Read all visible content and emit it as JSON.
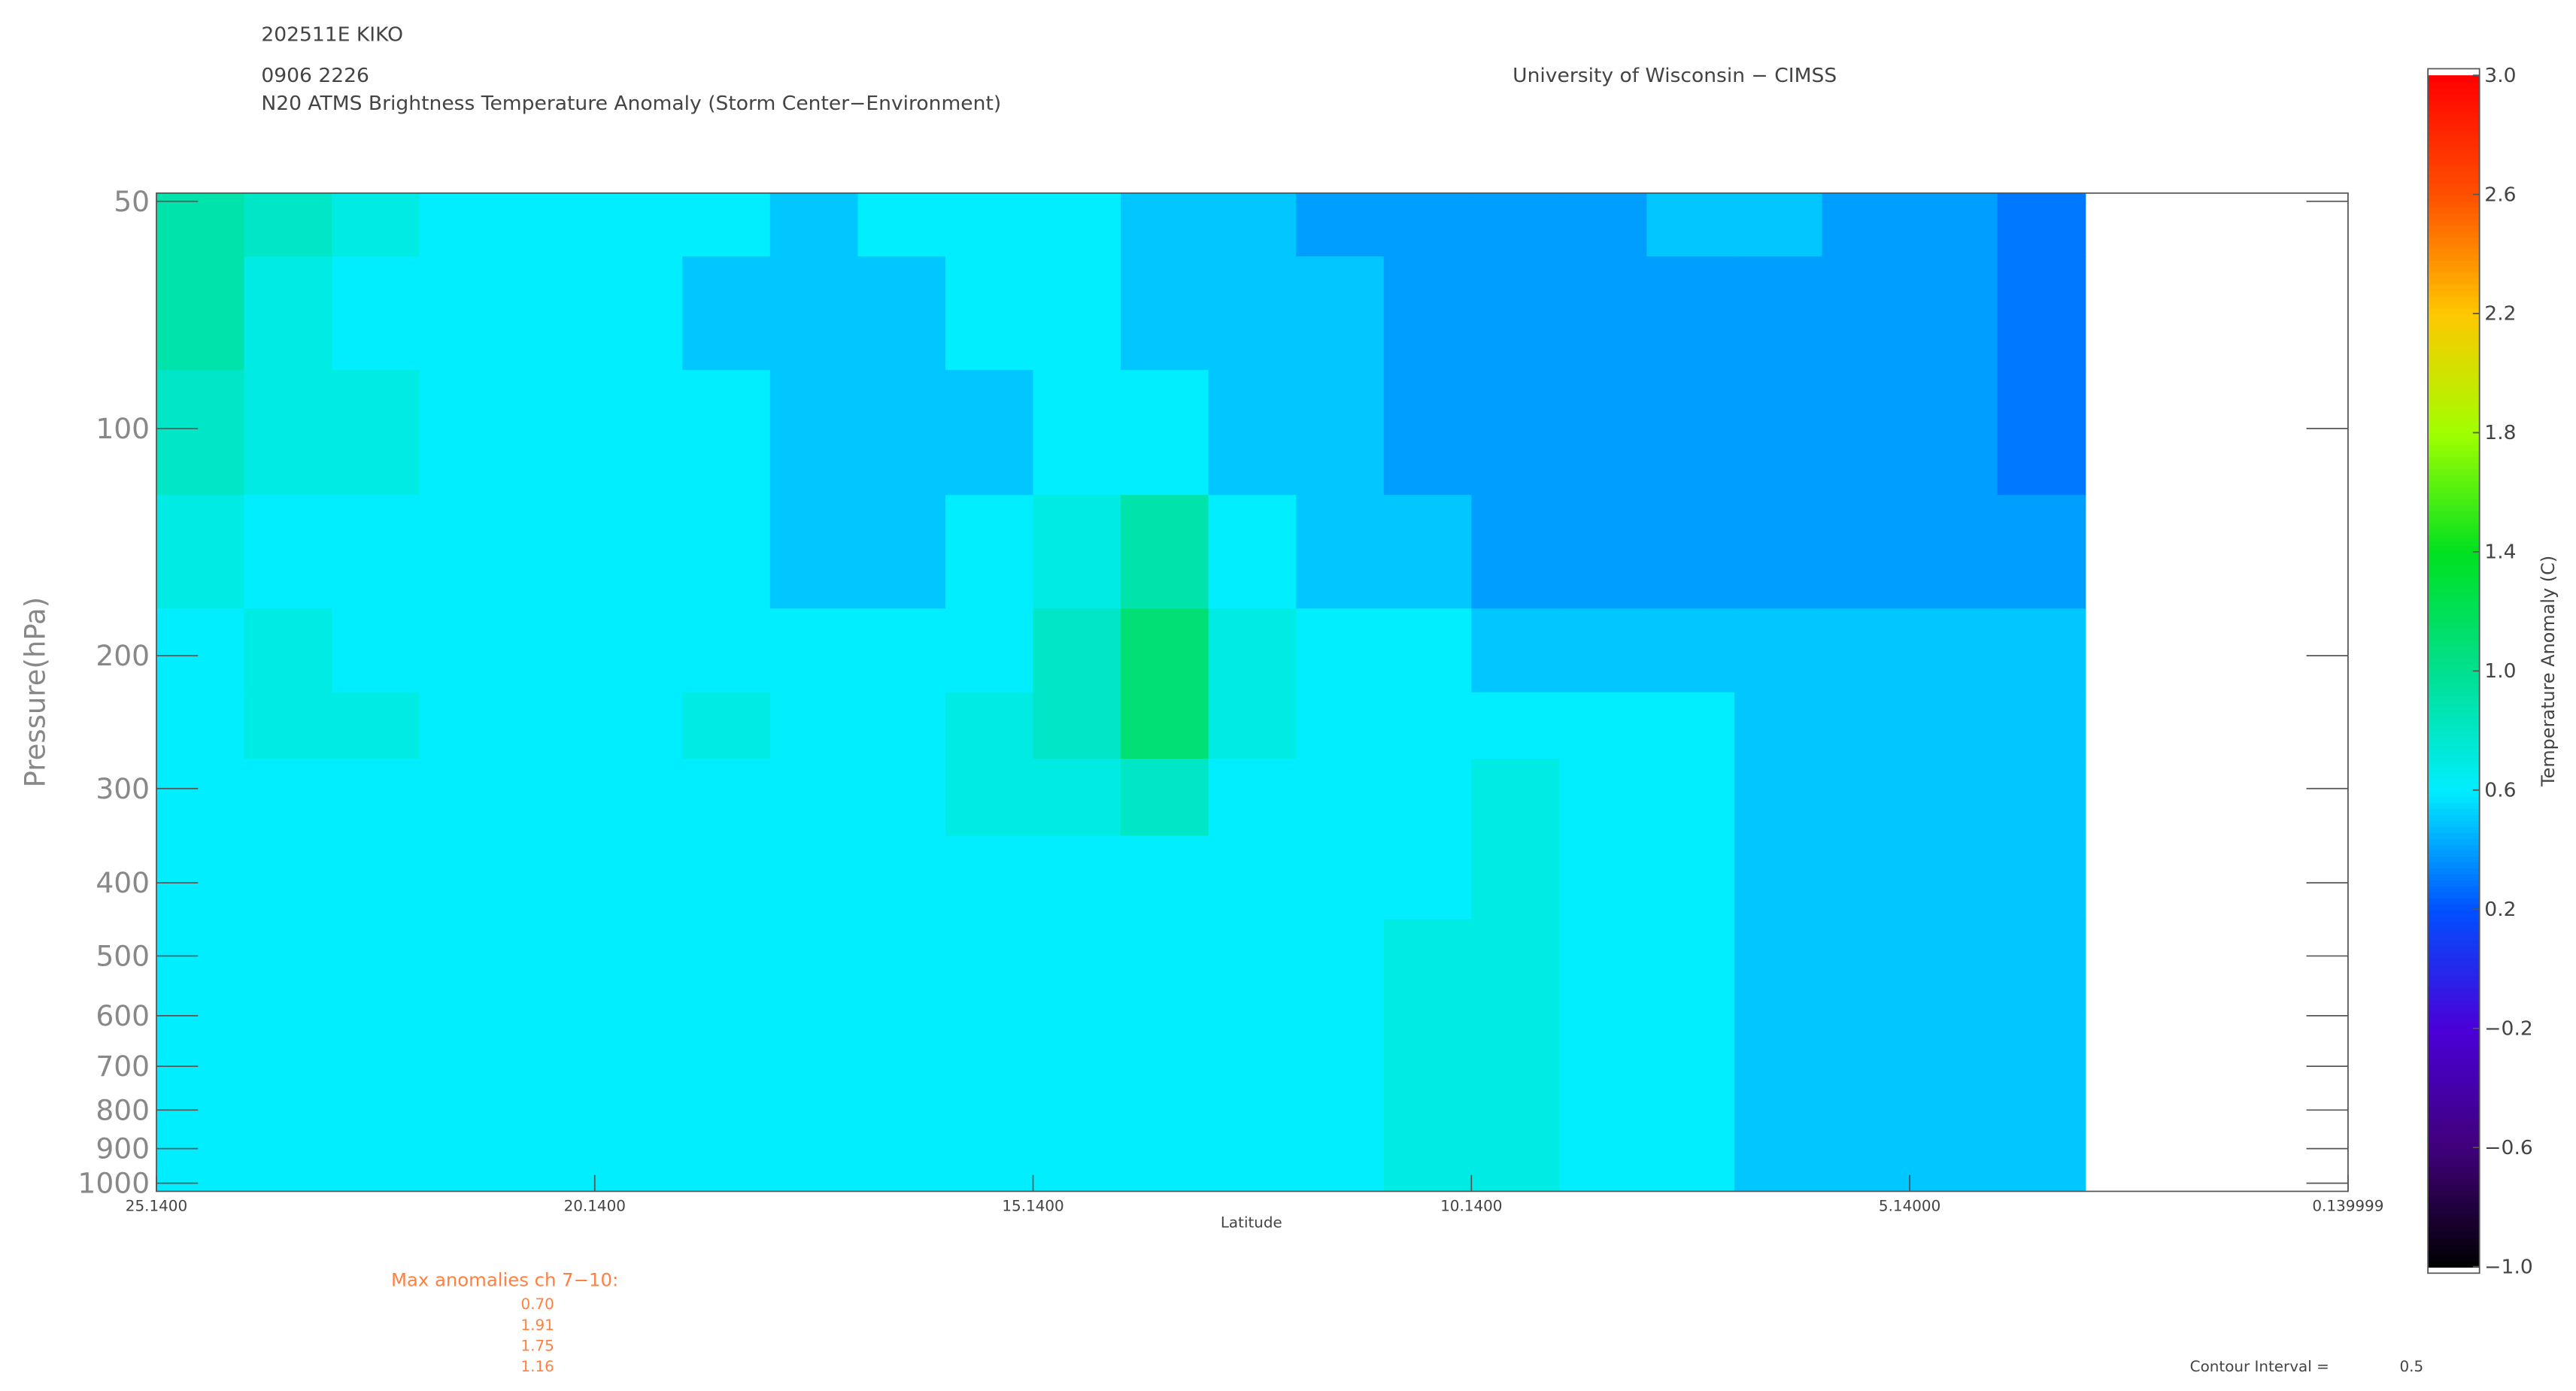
{
  "header": {
    "storm": "202511E KIKO",
    "time": "0906 2226",
    "product": "N20 ATMS Brightness Temperature Anomaly (Storm Center−Environment)",
    "source": "University of Wisconsin − CIMSS"
  },
  "chart_data": {
    "type": "heatmap",
    "x_label": "Latitude",
    "y_label": "Pressure(hPa)",
    "xlim": [
      25.14,
      0.139999
    ],
    "xticks": [
      {
        "value": 25.14,
        "label": "25.1400"
      },
      {
        "value": 20.14,
        "label": "20.1400"
      },
      {
        "value": 15.14,
        "label": "15.1400"
      },
      {
        "value": 10.14,
        "label": "10.1400"
      },
      {
        "value": 5.14,
        "label": "5.14000"
      },
      {
        "value": 0.139999,
        "label": "0.139999"
      }
    ],
    "ylim": [
      1000,
      50
    ],
    "log_y": true,
    "yticks": [
      50,
      100,
      200,
      300,
      400,
      500,
      600,
      700,
      800,
      900,
      1000
    ],
    "x": [
      24.64,
      23.64,
      22.64,
      21.64,
      20.64,
      19.64,
      18.64,
      17.64,
      16.64,
      15.64,
      14.64,
      13.64,
      12.64,
      11.64,
      10.64,
      9.64,
      8.64,
      7.64,
      6.64,
      5.64,
      4.64,
      3.64
    ],
    "y": [
      50,
      70,
      100,
      150,
      200,
      250,
      300,
      400,
      500,
      700,
      1000
    ],
    "z": [
      [
        0.9,
        0.8,
        0.7,
        0.6,
        0.6,
        0.6,
        0.6,
        0.5,
        0.6,
        0.6,
        0.6,
        0.5,
        0.5,
        0.4,
        0.4,
        0.4,
        0.4,
        0.5,
        0.5,
        0.4,
        0.4,
        0.3
      ],
      [
        0.9,
        0.7,
        0.6,
        0.6,
        0.6,
        0.6,
        0.5,
        0.5,
        0.5,
        0.6,
        0.6,
        0.5,
        0.5,
        0.5,
        0.4,
        0.4,
        0.4,
        0.4,
        0.4,
        0.4,
        0.4,
        0.3
      ],
      [
        0.8,
        0.7,
        0.7,
        0.6,
        0.6,
        0.6,
        0.6,
        0.5,
        0.5,
        0.5,
        0.6,
        0.6,
        0.5,
        0.5,
        0.4,
        0.4,
        0.4,
        0.4,
        0.4,
        0.4,
        0.4,
        0.3
      ],
      [
        0.7,
        0.6,
        0.6,
        0.6,
        0.6,
        0.6,
        0.6,
        0.5,
        0.5,
        0.6,
        0.7,
        0.9,
        0.6,
        0.5,
        0.5,
        0.4,
        0.4,
        0.4,
        0.4,
        0.4,
        0.4,
        0.4
      ],
      [
        0.6,
        0.7,
        0.6,
        0.6,
        0.6,
        0.6,
        0.6,
        0.6,
        0.6,
        0.6,
        0.8,
        1.1,
        0.7,
        0.6,
        0.6,
        0.5,
        0.5,
        0.5,
        0.5,
        0.5,
        0.5,
        0.5
      ],
      [
        0.6,
        0.7,
        0.7,
        0.6,
        0.6,
        0.6,
        0.7,
        0.6,
        0.6,
        0.7,
        0.8,
        1.1,
        0.7,
        0.6,
        0.6,
        0.6,
        0.6,
        0.6,
        0.5,
        0.5,
        0.5,
        0.5
      ],
      [
        0.6,
        0.6,
        0.6,
        0.6,
        0.6,
        0.6,
        0.6,
        0.6,
        0.6,
        0.7,
        0.7,
        0.8,
        0.6,
        0.6,
        0.6,
        0.7,
        0.6,
        0.6,
        0.5,
        0.5,
        0.5,
        0.5
      ],
      [
        0.6,
        0.6,
        0.6,
        0.6,
        0.6,
        0.6,
        0.6,
        0.6,
        0.6,
        0.6,
        0.6,
        0.6,
        0.6,
        0.6,
        0.6,
        0.7,
        0.6,
        0.6,
        0.5,
        0.5,
        0.5,
        0.5
      ],
      [
        0.6,
        0.6,
        0.6,
        0.6,
        0.6,
        0.6,
        0.6,
        0.6,
        0.6,
        0.6,
        0.6,
        0.6,
        0.6,
        0.6,
        0.7,
        0.7,
        0.6,
        0.6,
        0.5,
        0.5,
        0.5,
        0.5
      ],
      [
        0.6,
        0.6,
        0.6,
        0.6,
        0.6,
        0.6,
        0.6,
        0.6,
        0.6,
        0.6,
        0.6,
        0.6,
        0.6,
        0.6,
        0.7,
        0.7,
        0.6,
        0.6,
        0.5,
        0.5,
        0.5,
        0.5
      ],
      [
        0.6,
        0.6,
        0.6,
        0.6,
        0.6,
        0.6,
        0.6,
        0.6,
        0.6,
        0.6,
        0.6,
        0.6,
        0.6,
        0.6,
        0.7,
        0.7,
        0.6,
        0.6,
        0.5,
        0.5,
        0.5,
        0.5
      ]
    ],
    "colorbar": {
      "label": "Temperature Anomaly (C)",
      "lim": [
        -1.0,
        3.0
      ],
      "ticks": [
        {
          "value": -1,
          "label": "−1.0"
        },
        {
          "value": -0.6,
          "label": "−0.6"
        },
        {
          "value": -0.2,
          "label": "−0.2"
        },
        0.2,
        0.6,
        {
          "value": 1,
          "label": "1.0"
        },
        1.4,
        1.8,
        2.2,
        2.6,
        {
          "value": 3,
          "label": "3.0"
        }
      ],
      "stops": [
        {
          "value": -1,
          "color": "#000000"
        },
        {
          "value": -0.6,
          "color": "#40007a"
        },
        {
          "value": -0.2,
          "color": "#4a00d8"
        },
        {
          "value": 0.2,
          "color": "#0050ff"
        },
        {
          "value": 0.6,
          "color": "#00eeff"
        },
        {
          "value": 1.0,
          "color": "#00e090"
        },
        {
          "value": 1.4,
          "color": "#00e020"
        },
        {
          "value": 1.8,
          "color": "#a0ff00"
        },
        {
          "value": 2.2,
          "color": "#ffc800"
        },
        {
          "value": 2.6,
          "color": "#ff5000"
        },
        {
          "value": 3.0,
          "color": "#ff0000"
        }
      ]
    },
    "max_anomalies": {
      "label": "Max anomalies ch 7−10:",
      "values": [
        {
          "value": 0.7,
          "label": "0.70"
        },
        {
          "value": 1.91,
          "label": "1.91"
        },
        {
          "value": 1.75,
          "label": "1.75"
        },
        {
          "value": 1.16,
          "label": "1.16"
        }
      ]
    },
    "contour_interval": {
      "label": "Contour Interval =",
      "value": 0.5
    }
  }
}
